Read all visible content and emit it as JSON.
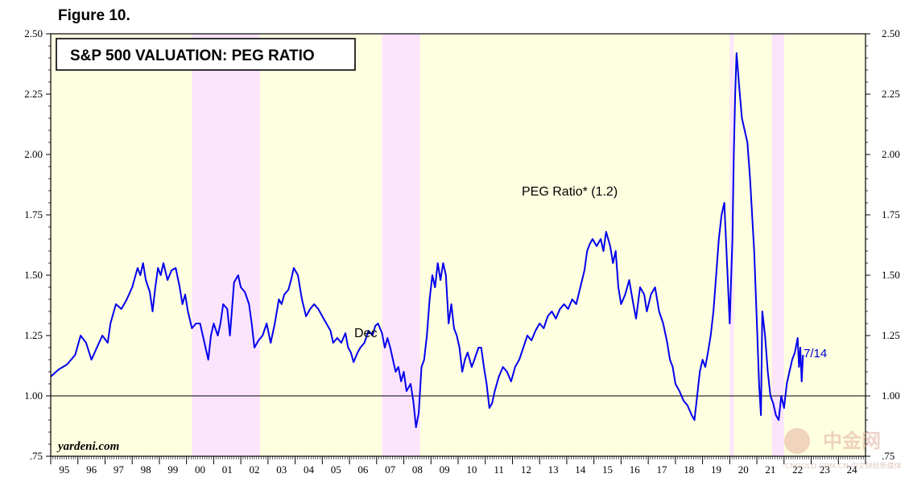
{
  "figure_label": "Figure 10.",
  "watermark": {
    "brand": "中金网",
    "sub": "CNGOLD.COM.CN  中文财经新媒体"
  },
  "chart_data": {
    "type": "line",
    "title": "S&P 500 VALUATION: PEG RATIO",
    "source": "yardeni.com",
    "series_label": "PEG Ratio* (1.2)",
    "latest_label": "7/14",
    "partial_label": "Dec",
    "xlabel": "",
    "ylabel": "",
    "xlim": [
      1995.0,
      2025.0
    ],
    "ylim": [
      0.75,
      2.5
    ],
    "yticks": [
      "2.50",
      "2.25",
      "2.00",
      "1.75",
      "1.50",
      "1.25",
      "1.00",
      ".75"
    ],
    "ytick_values": [
      2.5,
      2.25,
      2.0,
      1.75,
      1.5,
      1.25,
      1.0,
      0.75
    ],
    "xtick_labels": [
      "95",
      "96",
      "97",
      "98",
      "99",
      "00",
      "01",
      "02",
      "03",
      "04",
      "05",
      "06",
      "07",
      "08",
      "09",
      "10",
      "11",
      "12",
      "13",
      "14",
      "15",
      "16",
      "17",
      "18",
      "19",
      "20",
      "21",
      "22",
      "23",
      "24"
    ],
    "reference_line": 1.0,
    "recessions": [
      [
        2000.2,
        2002.7
      ],
      [
        2007.2,
        2008.6
      ],
      [
        2020.0,
        2020.15
      ],
      [
        2021.55,
        2022.0
      ]
    ],
    "colors": {
      "background": "#fefee0",
      "recession": "#fde4fd",
      "line": "#0000ee",
      "latest_label": "#0000cc"
    },
    "series": [
      {
        "name": "PEG Ratio",
        "points": [
          [
            1995.0,
            1.08
          ],
          [
            1995.3,
            1.11
          ],
          [
            1995.6,
            1.13
          ],
          [
            1995.9,
            1.17
          ],
          [
            1996.1,
            1.25
          ],
          [
            1996.3,
            1.22
          ],
          [
            1996.5,
            1.15
          ],
          [
            1996.7,
            1.2
          ],
          [
            1996.9,
            1.25
          ],
          [
            1997.1,
            1.22
          ],
          [
            1997.2,
            1.3
          ],
          [
            1997.4,
            1.38
          ],
          [
            1997.6,
            1.36
          ],
          [
            1997.8,
            1.4
          ],
          [
            1998.0,
            1.45
          ],
          [
            1998.2,
            1.53
          ],
          [
            1998.3,
            1.5
          ],
          [
            1998.4,
            1.55
          ],
          [
            1998.5,
            1.48
          ],
          [
            1998.65,
            1.43
          ],
          [
            1998.75,
            1.35
          ],
          [
            1998.85,
            1.45
          ],
          [
            1998.95,
            1.53
          ],
          [
            1999.05,
            1.5
          ],
          [
            1999.15,
            1.55
          ],
          [
            1999.3,
            1.48
          ],
          [
            1999.45,
            1.52
          ],
          [
            1999.6,
            1.53
          ],
          [
            1999.75,
            1.45
          ],
          [
            1999.85,
            1.38
          ],
          [
            1999.95,
            1.42
          ],
          [
            2000.05,
            1.35
          ],
          [
            2000.2,
            1.28
          ],
          [
            2000.35,
            1.3
          ],
          [
            2000.5,
            1.3
          ],
          [
            2000.6,
            1.25
          ],
          [
            2000.7,
            1.2
          ],
          [
            2000.8,
            1.15
          ],
          [
            2000.9,
            1.25
          ],
          [
            2001.0,
            1.3
          ],
          [
            2001.15,
            1.25
          ],
          [
            2001.25,
            1.3
          ],
          [
            2001.35,
            1.38
          ],
          [
            2001.5,
            1.36
          ],
          [
            2001.6,
            1.25
          ],
          [
            2001.75,
            1.47
          ],
          [
            2001.9,
            1.5
          ],
          [
            2002.0,
            1.45
          ],
          [
            2002.15,
            1.43
          ],
          [
            2002.3,
            1.38
          ],
          [
            2002.4,
            1.3
          ],
          [
            2002.5,
            1.2
          ],
          [
            2002.65,
            1.23
          ],
          [
            2002.8,
            1.25
          ],
          [
            2002.95,
            1.3
          ],
          [
            2003.1,
            1.22
          ],
          [
            2003.25,
            1.3
          ],
          [
            2003.4,
            1.4
          ],
          [
            2003.5,
            1.38
          ],
          [
            2003.6,
            1.42
          ],
          [
            2003.75,
            1.44
          ],
          [
            2003.85,
            1.48
          ],
          [
            2003.95,
            1.53
          ],
          [
            2004.1,
            1.5
          ],
          [
            2004.25,
            1.4
          ],
          [
            2004.4,
            1.33
          ],
          [
            2004.55,
            1.36
          ],
          [
            2004.7,
            1.38
          ],
          [
            2004.85,
            1.36
          ],
          [
            2005.0,
            1.33
          ],
          [
            2005.15,
            1.3
          ],
          [
            2005.3,
            1.27
          ],
          [
            2005.4,
            1.22
          ],
          [
            2005.55,
            1.24
          ],
          [
            2005.7,
            1.22
          ],
          [
            2005.85,
            1.26
          ],
          [
            2005.95,
            1.2
          ],
          [
            2006.05,
            1.18
          ],
          [
            2006.15,
            1.14
          ],
          [
            2006.3,
            1.18
          ],
          [
            2006.4,
            1.2
          ],
          [
            2006.55,
            1.22
          ],
          [
            2006.7,
            1.27
          ],
          [
            2006.85,
            1.25
          ],
          [
            2006.95,
            1.29
          ],
          [
            2007.05,
            1.3
          ],
          [
            2007.2,
            1.26
          ],
          [
            2007.3,
            1.2
          ],
          [
            2007.4,
            1.24
          ],
          [
            2007.5,
            1.2
          ],
          [
            2007.6,
            1.15
          ],
          [
            2007.7,
            1.1
          ],
          [
            2007.8,
            1.12
          ],
          [
            2007.9,
            1.06
          ],
          [
            2008.0,
            1.1
          ],
          [
            2008.1,
            1.02
          ],
          [
            2008.25,
            1.05
          ],
          [
            2008.35,
            0.98
          ],
          [
            2008.45,
            0.87
          ],
          [
            2008.55,
            0.93
          ],
          [
            2008.65,
            1.12
          ],
          [
            2008.75,
            1.15
          ],
          [
            2008.85,
            1.25
          ],
          [
            2008.95,
            1.4
          ],
          [
            2009.05,
            1.5
          ],
          [
            2009.15,
            1.45
          ],
          [
            2009.25,
            1.55
          ],
          [
            2009.35,
            1.48
          ],
          [
            2009.45,
            1.55
          ],
          [
            2009.55,
            1.5
          ],
          [
            2009.65,
            1.3
          ],
          [
            2009.75,
            1.38
          ],
          [
            2009.85,
            1.28
          ],
          [
            2009.95,
            1.25
          ],
          [
            2010.05,
            1.2
          ],
          [
            2010.15,
            1.1
          ],
          [
            2010.25,
            1.15
          ],
          [
            2010.35,
            1.18
          ],
          [
            2010.5,
            1.12
          ],
          [
            2010.6,
            1.15
          ],
          [
            2010.75,
            1.2
          ],
          [
            2010.85,
            1.2
          ],
          [
            2010.95,
            1.12
          ],
          [
            2011.05,
            1.05
          ],
          [
            2011.15,
            0.95
          ],
          [
            2011.25,
            0.97
          ],
          [
            2011.35,
            1.02
          ],
          [
            2011.5,
            1.08
          ],
          [
            2011.65,
            1.12
          ],
          [
            2011.8,
            1.1
          ],
          [
            2011.95,
            1.06
          ],
          [
            2012.1,
            1.12
          ],
          [
            2012.25,
            1.15
          ],
          [
            2012.4,
            1.2
          ],
          [
            2012.55,
            1.25
          ],
          [
            2012.7,
            1.23
          ],
          [
            2012.85,
            1.27
          ],
          [
            2013.0,
            1.3
          ],
          [
            2013.15,
            1.28
          ],
          [
            2013.3,
            1.33
          ],
          [
            2013.45,
            1.35
          ],
          [
            2013.6,
            1.32
          ],
          [
            2013.75,
            1.36
          ],
          [
            2013.9,
            1.38
          ],
          [
            2014.05,
            1.36
          ],
          [
            2014.2,
            1.4
          ],
          [
            2014.35,
            1.38
          ],
          [
            2014.5,
            1.45
          ],
          [
            2014.65,
            1.52
          ],
          [
            2014.75,
            1.6
          ],
          [
            2014.85,
            1.63
          ],
          [
            2014.95,
            1.65
          ],
          [
            2015.1,
            1.62
          ],
          [
            2015.25,
            1.65
          ],
          [
            2015.35,
            1.6
          ],
          [
            2015.45,
            1.68
          ],
          [
            2015.6,
            1.62
          ],
          [
            2015.7,
            1.55
          ],
          [
            2015.8,
            1.6
          ],
          [
            2015.9,
            1.45
          ],
          [
            2016.0,
            1.38
          ],
          [
            2016.15,
            1.42
          ],
          [
            2016.3,
            1.48
          ],
          [
            2016.45,
            1.38
          ],
          [
            2016.55,
            1.32
          ],
          [
            2016.7,
            1.45
          ],
          [
            2016.85,
            1.42
          ],
          [
            2016.95,
            1.35
          ],
          [
            2017.1,
            1.42
          ],
          [
            2017.25,
            1.45
          ],
          [
            2017.4,
            1.35
          ],
          [
            2017.55,
            1.3
          ],
          [
            2017.7,
            1.22
          ],
          [
            2017.8,
            1.15
          ],
          [
            2017.9,
            1.12
          ],
          [
            2018.0,
            1.05
          ],
          [
            2018.15,
            1.02
          ],
          [
            2018.3,
            0.98
          ],
          [
            2018.45,
            0.96
          ],
          [
            2018.6,
            0.92
          ],
          [
            2018.7,
            0.9
          ],
          [
            2018.8,
            1.0
          ],
          [
            2018.9,
            1.1
          ],
          [
            2019.0,
            1.15
          ],
          [
            2019.1,
            1.12
          ],
          [
            2019.2,
            1.18
          ],
          [
            2019.3,
            1.25
          ],
          [
            2019.4,
            1.35
          ],
          [
            2019.5,
            1.5
          ],
          [
            2019.6,
            1.65
          ],
          [
            2019.7,
            1.75
          ],
          [
            2019.8,
            1.8
          ],
          [
            2019.9,
            1.55
          ],
          [
            2020.0,
            1.3
          ],
          [
            2020.1,
            1.65
          ],
          [
            2020.15,
            2.0
          ],
          [
            2020.2,
            2.25
          ],
          [
            2020.25,
            2.42
          ],
          [
            2020.3,
            2.35
          ],
          [
            2020.35,
            2.28
          ],
          [
            2020.45,
            2.15
          ],
          [
            2020.55,
            2.1
          ],
          [
            2020.65,
            2.05
          ],
          [
            2020.75,
            1.9
          ],
          [
            2020.8,
            1.8
          ],
          [
            2020.9,
            1.6
          ],
          [
            2021.0,
            1.3
          ],
          [
            2021.08,
            1.05
          ],
          [
            2021.15,
            0.92
          ],
          [
            2021.2,
            1.35
          ],
          [
            2021.3,
            1.25
          ],
          [
            2021.4,
            1.1
          ],
          [
            2021.5,
            1.0
          ],
          [
            2021.6,
            0.97
          ],
          [
            2021.7,
            0.92
          ],
          [
            2021.8,
            0.9
          ],
          [
            2021.9,
            1.0
          ],
          [
            2022.0,
            0.95
          ],
          [
            2022.1,
            1.05
          ],
          [
            2022.2,
            1.1
          ],
          [
            2022.3,
            1.15
          ],
          [
            2022.4,
            1.18
          ],
          [
            2022.5,
            1.24
          ],
          [
            2022.55,
            1.12
          ],
          [
            2022.6,
            1.2
          ],
          [
            2022.65,
            1.06
          ],
          [
            2022.7,
            1.17
          ]
        ]
      }
    ]
  }
}
